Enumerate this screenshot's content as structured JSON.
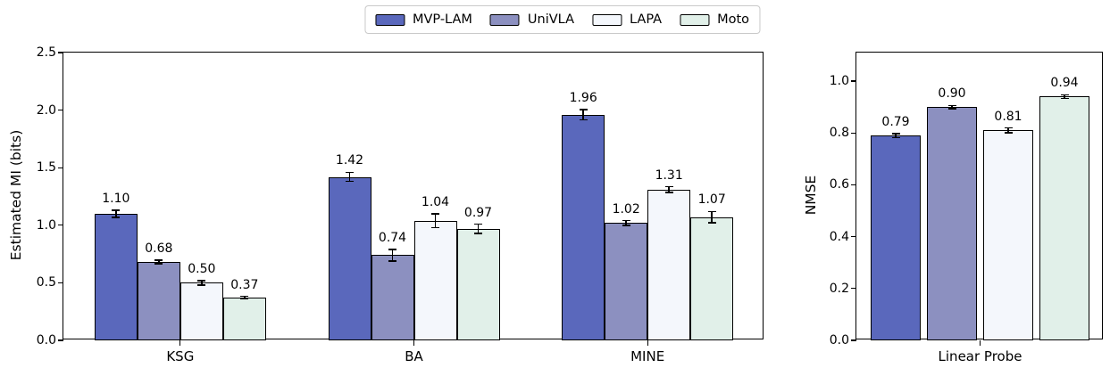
{
  "legend": {
    "entries": [
      {
        "label": "MVP-LAM",
        "color": "#5a68bc"
      },
      {
        "label": "UniVLA",
        "color": "#8c90c0"
      },
      {
        "label": "LAPA",
        "color": "#f4f7fc"
      },
      {
        "label": "Moto",
        "color": "#e1f0e9"
      }
    ]
  },
  "chart_data": [
    {
      "type": "bar",
      "title": "",
      "ylabel": "Estimated MI (bits)",
      "xlabel": "",
      "categories": [
        "KSG",
        "BA",
        "MINE"
      ],
      "series": [
        {
          "name": "MVP-LAM",
          "color": "#5a68bc",
          "values": [
            1.1,
            1.42,
            1.96
          ],
          "errors": [
            0.03,
            0.04,
            0.045
          ],
          "value_labels": [
            "1.10",
            "1.42",
            "1.96"
          ]
        },
        {
          "name": "UniVLA",
          "color": "#8c90c0",
          "values": [
            0.68,
            0.74,
            1.02
          ],
          "errors": [
            0.015,
            0.05,
            0.02
          ],
          "value_labels": [
            "0.68",
            "0.74",
            "1.02"
          ]
        },
        {
          "name": "LAPA",
          "color": "#f4f7fc",
          "values": [
            0.5,
            1.04,
            1.31
          ],
          "errors": [
            0.02,
            0.06,
            0.025
          ],
          "value_labels": [
            "0.50",
            "1.04",
            "1.31"
          ]
        },
        {
          "name": "Moto",
          "color": "#e1f0e9",
          "values": [
            0.37,
            0.97,
            1.07
          ],
          "errors": [
            0.012,
            0.04,
            0.05
          ],
          "value_labels": [
            "0.37",
            "0.97",
            "1.07"
          ]
        }
      ],
      "ylim": [
        0,
        2.5
      ],
      "yticks": [
        0,
        0.5,
        1.0,
        1.5,
        2.0,
        2.5
      ],
      "ytick_labels": [
        "0.0",
        "0.5",
        "1.0",
        "1.5",
        "2.0",
        "2.5"
      ],
      "grid": false,
      "legend_position": "top-center-shared",
      "error_bars": true
    },
    {
      "type": "bar",
      "title": "",
      "ylabel": "NMSE",
      "xlabel": "",
      "categories": [
        "Linear Probe"
      ],
      "series": [
        {
          "name": "MVP-LAM",
          "color": "#5a68bc",
          "values": [
            0.79
          ],
          "errors": [
            0.008
          ],
          "value_labels": [
            "0.79"
          ]
        },
        {
          "name": "UniVLA",
          "color": "#8c90c0",
          "values": [
            0.9
          ],
          "errors": [
            0.006
          ],
          "value_labels": [
            "0.90"
          ]
        },
        {
          "name": "LAPA",
          "color": "#f4f7fc",
          "values": [
            0.81
          ],
          "errors": [
            0.009
          ],
          "value_labels": [
            "0.81"
          ]
        },
        {
          "name": "Moto",
          "color": "#e1f0e9",
          "values": [
            0.94
          ],
          "errors": [
            0.007
          ],
          "value_labels": [
            "0.94"
          ]
        }
      ],
      "ylim": [
        0,
        1.11
      ],
      "yticks": [
        0,
        0.2,
        0.4,
        0.6,
        0.8,
        1.0
      ],
      "ytick_labels": [
        "0.0",
        "0.2",
        "0.4",
        "0.6",
        "0.8",
        "1.0"
      ],
      "grid": false,
      "error_bars": true
    }
  ]
}
